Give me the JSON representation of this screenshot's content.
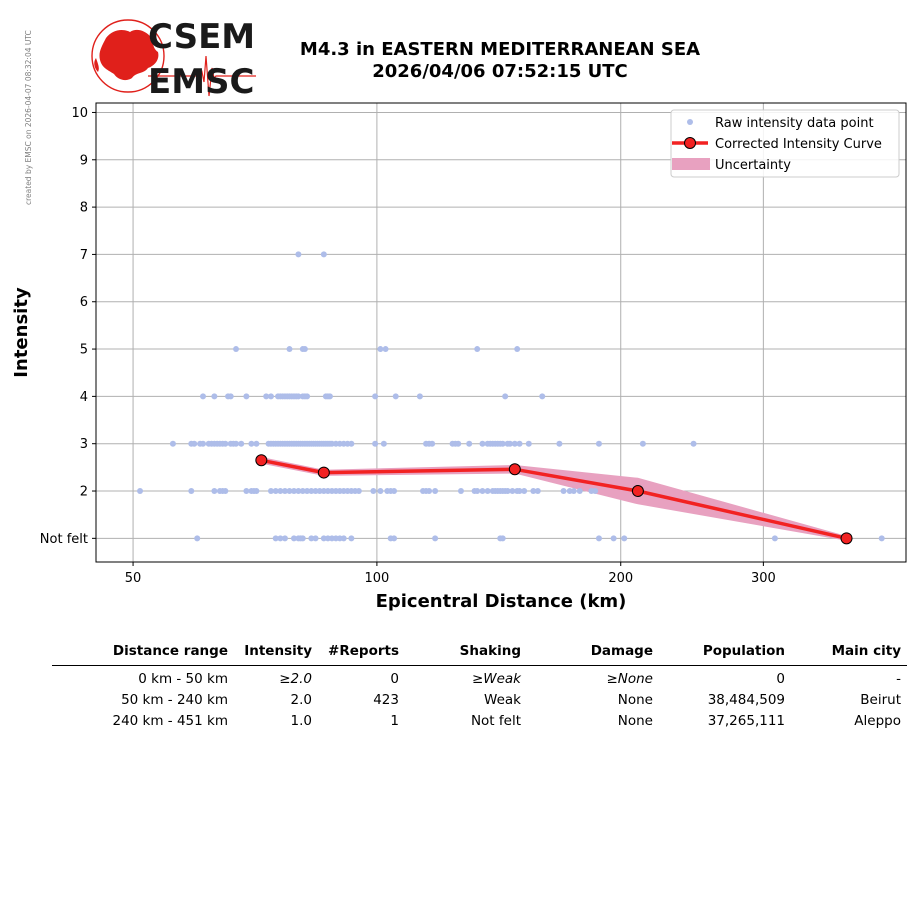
{
  "side_note": "created by EMSC on 2026-04-07 08:32:04 UTC",
  "logo": {
    "line1": "CSEM",
    "line2": "EMSC",
    "brand_color": "#e0201b"
  },
  "chart_data": {
    "type": "scatter",
    "title": [
      "M4.3 in EASTERN MEDITERRANEAN SEA",
      "2026/04/06 07:52:15 UTC"
    ],
    "xlabel": "Epicentral Distance (km)",
    "ylabel": "Intensity",
    "x_scale": "log",
    "xlim": [
      45,
      450
    ],
    "ylim": [
      0.5,
      10.2
    ],
    "x_ticks": [
      50,
      100,
      200,
      300
    ],
    "y_ticks": [
      1,
      2,
      3,
      4,
      5,
      6,
      7,
      8,
      9,
      10
    ],
    "y_tick_labels": [
      "Not felt",
      "2",
      "3",
      "4",
      "5",
      "6",
      "7",
      "8",
      "9",
      "10"
    ],
    "grid": true,
    "legend_placement": "top-right",
    "legend": [
      "Raw intensity data point",
      "Corrected Intensity Curve",
      "Uncertainty"
    ],
    "colors": {
      "raw": "#aebde9",
      "curve": "#f22222",
      "marker_edge": "#000000",
      "uncertainty": "#e8a1c0"
    },
    "raw_points": [
      [
        80,
        7
      ],
      [
        86,
        7
      ],
      [
        67,
        5
      ],
      [
        78,
        5
      ],
      [
        81,
        5
      ],
      [
        81.5,
        5
      ],
      [
        101,
        5
      ],
      [
        102.5,
        5
      ],
      [
        133,
        5
      ],
      [
        149,
        5
      ],
      [
        61,
        4
      ],
      [
        63,
        4
      ],
      [
        65.5,
        4
      ],
      [
        66,
        4
      ],
      [
        69,
        4
      ],
      [
        73,
        4
      ],
      [
        74,
        4
      ],
      [
        75.5,
        4
      ],
      [
        76,
        4
      ],
      [
        76.5,
        4
      ],
      [
        77,
        4
      ],
      [
        77.5,
        4
      ],
      [
        78,
        4
      ],
      [
        78.5,
        4
      ],
      [
        79,
        4
      ],
      [
        79.5,
        4
      ],
      [
        80,
        4
      ],
      [
        81,
        4
      ],
      [
        81.5,
        4
      ],
      [
        82,
        4
      ],
      [
        86.5,
        4
      ],
      [
        87,
        4
      ],
      [
        87.5,
        4
      ],
      [
        99.5,
        4
      ],
      [
        105.5,
        4
      ],
      [
        113,
        4
      ],
      [
        144,
        4
      ],
      [
        160,
        4
      ],
      [
        56,
        3
      ],
      [
        59,
        3
      ],
      [
        59.5,
        3
      ],
      [
        60.5,
        3
      ],
      [
        61,
        3
      ],
      [
        62,
        3
      ],
      [
        62.5,
        3
      ],
      [
        63,
        3
      ],
      [
        63.5,
        3
      ],
      [
        64,
        3
      ],
      [
        64.5,
        3
      ],
      [
        65,
        3
      ],
      [
        66,
        3
      ],
      [
        66.5,
        3
      ],
      [
        67,
        3
      ],
      [
        68,
        3
      ],
      [
        70,
        3
      ],
      [
        71,
        3
      ],
      [
        73.5,
        3
      ],
      [
        74,
        3
      ],
      [
        74.5,
        3
      ],
      [
        75,
        3
      ],
      [
        75.5,
        3
      ],
      [
        76,
        3
      ],
      [
        76.5,
        3
      ],
      [
        77,
        3
      ],
      [
        77.5,
        3
      ],
      [
        78,
        3
      ],
      [
        78.5,
        3
      ],
      [
        79,
        3
      ],
      [
        79.5,
        3
      ],
      [
        80,
        3
      ],
      [
        80.5,
        3
      ],
      [
        81,
        3
      ],
      [
        81.5,
        3
      ],
      [
        82,
        3
      ],
      [
        82.5,
        3
      ],
      [
        83,
        3
      ],
      [
        83.5,
        3
      ],
      [
        84,
        3
      ],
      [
        84.5,
        3
      ],
      [
        85,
        3
      ],
      [
        85.5,
        3
      ],
      [
        86,
        3
      ],
      [
        86.5,
        3
      ],
      [
        87,
        3
      ],
      [
        87.5,
        3
      ],
      [
        88,
        3
      ],
      [
        89,
        3
      ],
      [
        90,
        3
      ],
      [
        91,
        3
      ],
      [
        92,
        3
      ],
      [
        93,
        3
      ],
      [
        99.5,
        3
      ],
      [
        102,
        3
      ],
      [
        115,
        3
      ],
      [
        116,
        3
      ],
      [
        117,
        3
      ],
      [
        124,
        3
      ],
      [
        125,
        3
      ],
      [
        126,
        3
      ],
      [
        130,
        3
      ],
      [
        135,
        3
      ],
      [
        137,
        3
      ],
      [
        138,
        3
      ],
      [
        139,
        3
      ],
      [
        140,
        3
      ],
      [
        141,
        3
      ],
      [
        142,
        3
      ],
      [
        143,
        3
      ],
      [
        145,
        3
      ],
      [
        146,
        3
      ],
      [
        148,
        3
      ],
      [
        150,
        3
      ],
      [
        154,
        3
      ],
      [
        168,
        3
      ],
      [
        188,
        3
      ],
      [
        213,
        3
      ],
      [
        246,
        3
      ],
      [
        51,
        2
      ],
      [
        59,
        2
      ],
      [
        63,
        2
      ],
      [
        64,
        2
      ],
      [
        64.5,
        2
      ],
      [
        65,
        2
      ],
      [
        69,
        2
      ],
      [
        70,
        2
      ],
      [
        70.5,
        2
      ],
      [
        71,
        2
      ],
      [
        74,
        2
      ],
      [
        75,
        2
      ],
      [
        76,
        2
      ],
      [
        77,
        2
      ],
      [
        78,
        2
      ],
      [
        79,
        2
      ],
      [
        80,
        2
      ],
      [
        81,
        2
      ],
      [
        82,
        2
      ],
      [
        83,
        2
      ],
      [
        84,
        2
      ],
      [
        85,
        2
      ],
      [
        86,
        2
      ],
      [
        87,
        2
      ],
      [
        88,
        2
      ],
      [
        89,
        2
      ],
      [
        90,
        2
      ],
      [
        91,
        2
      ],
      [
        92,
        2
      ],
      [
        93,
        2
      ],
      [
        94,
        2
      ],
      [
        95,
        2
      ],
      [
        99,
        2
      ],
      [
        101,
        2
      ],
      [
        103,
        2
      ],
      [
        104,
        2
      ],
      [
        105,
        2
      ],
      [
        114,
        2
      ],
      [
        115,
        2
      ],
      [
        116,
        2
      ],
      [
        118,
        2
      ],
      [
        127,
        2
      ],
      [
        132,
        2
      ],
      [
        133,
        2
      ],
      [
        135,
        2
      ],
      [
        137,
        2
      ],
      [
        139,
        2
      ],
      [
        140,
        2
      ],
      [
        141,
        2
      ],
      [
        142,
        2
      ],
      [
        143,
        2
      ],
      [
        144,
        2
      ],
      [
        145,
        2
      ],
      [
        147,
        2
      ],
      [
        149,
        2
      ],
      [
        150,
        2
      ],
      [
        152,
        2
      ],
      [
        156,
        2
      ],
      [
        158,
        2
      ],
      [
        170,
        2
      ],
      [
        173,
        2
      ],
      [
        175,
        2
      ],
      [
        178,
        2
      ],
      [
        184,
        2
      ],
      [
        186,
        2
      ],
      [
        60,
        1
      ],
      [
        75,
        1
      ],
      [
        76,
        1
      ],
      [
        77,
        1
      ],
      [
        79,
        1
      ],
      [
        80,
        1
      ],
      [
        80.5,
        1
      ],
      [
        81,
        1
      ],
      [
        83,
        1
      ],
      [
        84,
        1
      ],
      [
        86,
        1
      ],
      [
        87,
        1
      ],
      [
        88,
        1
      ],
      [
        89,
        1
      ],
      [
        90,
        1
      ],
      [
        91,
        1
      ],
      [
        93,
        1
      ],
      [
        104,
        1
      ],
      [
        105,
        1
      ],
      [
        118,
        1
      ],
      [
        142,
        1
      ],
      [
        143,
        1
      ],
      [
        188,
        1
      ],
      [
        196,
        1
      ],
      [
        202,
        1
      ],
      [
        310,
        1
      ],
      [
        420,
        1
      ]
    ],
    "curve": {
      "x": [
        72,
        86,
        148,
        210,
        380
      ],
      "y": [
        2.65,
        2.39,
        2.46,
        2.0,
        1.0
      ]
    },
    "uncertainty": {
      "x": [
        72,
        86,
        148,
        210,
        380
      ],
      "upper": [
        2.72,
        2.45,
        2.55,
        2.28,
        1.05
      ],
      "lower": [
        2.58,
        2.32,
        2.37,
        1.72,
        0.95
      ]
    }
  },
  "table": {
    "headers": [
      "Distance range",
      "Intensity",
      "#Reports",
      "Shaking",
      "Damage",
      "Population",
      "Main city"
    ],
    "rows": [
      {
        "range": "0 km -   50 km",
        "intensity": "≥2.0",
        "reports": "0",
        "shaking": "≥Weak",
        "damage": "≥None",
        "population": "0",
        "city": "-",
        "italic": true
      },
      {
        "range": "50 km -  240 km",
        "intensity": "2.0",
        "reports": "423",
        "shaking": "Weak",
        "damage": "None",
        "population": "38,484,509",
        "city": "Beirut",
        "italic": false
      },
      {
        "range": "240 km -  451 km",
        "intensity": "1.0",
        "reports": "1",
        "shaking": "Not felt",
        "damage": "None",
        "population": "37,265,111",
        "city": "Aleppo",
        "italic": false
      }
    ]
  }
}
